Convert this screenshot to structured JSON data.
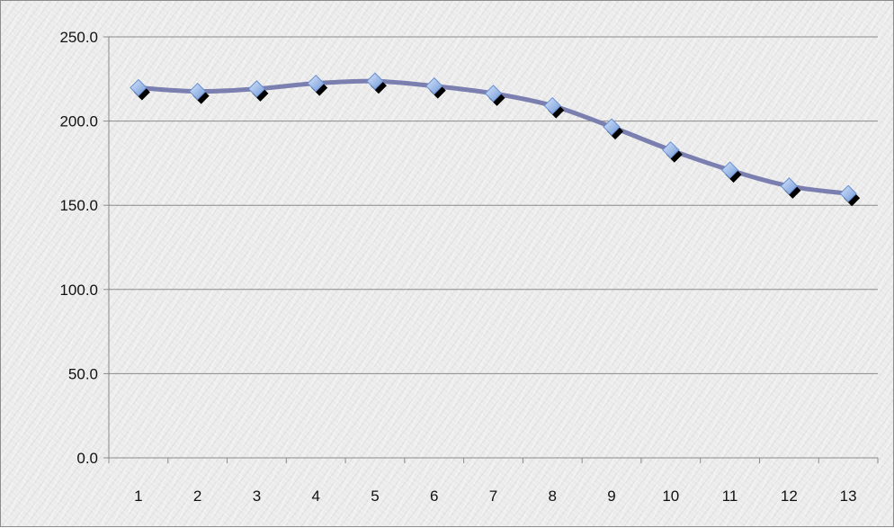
{
  "chart_data": {
    "type": "line",
    "title": "",
    "xlabel": "",
    "ylabel": "",
    "x": [
      "1",
      "2",
      "3",
      "4",
      "5",
      "6",
      "7",
      "8",
      "9",
      "10",
      "11",
      "12",
      "13"
    ],
    "series": [
      {
        "values": [
          219.8,
          217.6,
          219.1,
          222.4,
          223.7,
          220.8,
          216.4,
          209.1,
          196.5,
          182.8,
          170.9,
          161.4,
          156.9
        ]
      }
    ],
    "ylim": [
      0,
      250
    ],
    "yticks": [
      "0.0",
      "50.0",
      "100.0",
      "150.0",
      "200.0",
      "250.0"
    ],
    "grid": "horizontal",
    "legend": "none",
    "colors": {
      "line": "#7a7fb0",
      "marker_fill": "#8fb0e6",
      "marker_shadow": "#000000",
      "gridline": "#8a8a8a"
    }
  }
}
